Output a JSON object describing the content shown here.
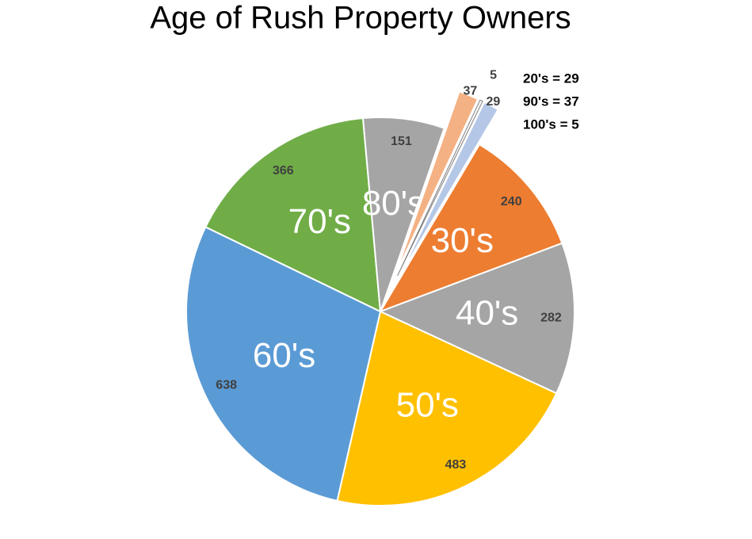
{
  "chart_data": {
    "type": "pie",
    "title": "Age of Rush Property Owners",
    "categories": [
      null,
      "30's",
      "40's",
      "50's",
      "60's",
      "70's",
      "80's",
      null,
      null
    ],
    "values": [
      29,
      240,
      282,
      483,
      638,
      366,
      151,
      37,
      5
    ],
    "colors": [
      "#b4c7e7",
      "#ed7d31",
      "#a5a5a5",
      "#ffc000",
      "#5b9bd5",
      "#70ad47",
      "#a5a5a5",
      "#f4b183",
      "#ffffff"
    ],
    "annotations": [
      "20's = 29",
      "90's = 37",
      "100's = 5"
    ]
  }
}
